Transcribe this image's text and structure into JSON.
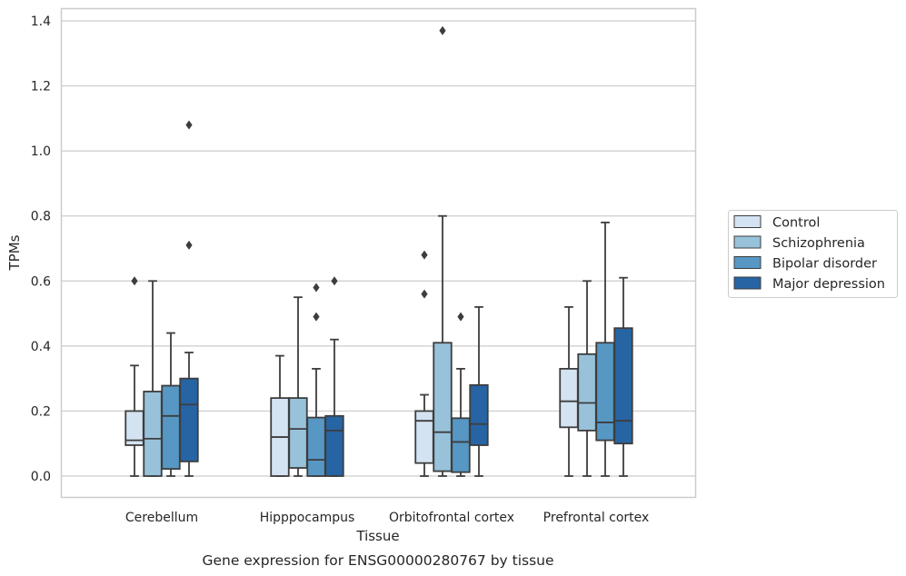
{
  "caption": "Gene expression for ENSG00000280767 by tissue",
  "chart_data": {
    "type": "boxplot",
    "title": "",
    "xlabel": "Tissue",
    "ylabel": "TPMs",
    "ylim": [
      -0.065,
      1.44
    ],
    "yticks": [
      0.0,
      0.2,
      0.4,
      0.6,
      0.8,
      1.0,
      1.2,
      1.4
    ],
    "ytick_labels": [
      "0.0",
      "0.2",
      "0.4",
      "0.6",
      "0.8",
      "1.0",
      "1.2",
      "1.4"
    ],
    "grid": "horizontal",
    "legend_position": "outside right",
    "categories": [
      "Cerebellum",
      "Hipppocampus",
      "Orbitofrontal cortex",
      "Prefrontal cortex"
    ],
    "series": [
      {
        "name": "Control",
        "color": "#d4e3f2",
        "boxes": [
          {
            "whislo": 0.0,
            "q1": 0.095,
            "med": 0.11,
            "q3": 0.2,
            "whishi": 0.34,
            "fliers": [
              0.6
            ]
          },
          {
            "whislo": 0.0,
            "q1": 0.0,
            "med": 0.12,
            "q3": 0.24,
            "whishi": 0.37,
            "fliers": []
          },
          {
            "whislo": 0.0,
            "q1": 0.04,
            "med": 0.17,
            "q3": 0.2,
            "whishi": 0.25,
            "fliers": [
              0.56,
              0.68
            ]
          },
          {
            "whislo": 0.0,
            "q1": 0.15,
            "med": 0.23,
            "q3": 0.33,
            "whishi": 0.52,
            "fliers": []
          }
        ]
      },
      {
        "name": "Schizophrenia",
        "color": "#97c2da",
        "boxes": [
          {
            "whislo": 0.0,
            "q1": 0.0,
            "med": 0.115,
            "q3": 0.26,
            "whishi": 0.6,
            "fliers": []
          },
          {
            "whislo": 0.0,
            "q1": 0.025,
            "med": 0.145,
            "q3": 0.24,
            "whishi": 0.55,
            "fliers": []
          },
          {
            "whislo": 0.0,
            "q1": 0.015,
            "med": 0.135,
            "q3": 0.41,
            "whishi": 0.8,
            "fliers": [
              1.37
            ]
          },
          {
            "whislo": 0.0,
            "q1": 0.14,
            "med": 0.225,
            "q3": 0.375,
            "whishi": 0.6,
            "fliers": []
          }
        ]
      },
      {
        "name": "Bipolar disorder",
        "color": "#5797c4",
        "boxes": [
          {
            "whislo": 0.0,
            "q1": 0.022,
            "med": 0.185,
            "q3": 0.278,
            "whishi": 0.44,
            "fliers": []
          },
          {
            "whislo": 0.0,
            "q1": 0.0,
            "med": 0.05,
            "q3": 0.18,
            "whishi": 0.33,
            "fliers": [
              0.49,
              0.58
            ]
          },
          {
            "whislo": 0.0,
            "q1": 0.012,
            "med": 0.105,
            "q3": 0.178,
            "whishi": 0.33,
            "fliers": [
              0.49
            ]
          },
          {
            "whislo": 0.0,
            "q1": 0.11,
            "med": 0.165,
            "q3": 0.41,
            "whishi": 0.78,
            "fliers": []
          }
        ]
      },
      {
        "name": "Major depression",
        "color": "#2764a4",
        "boxes": [
          {
            "whislo": 0.0,
            "q1": 0.045,
            "med": 0.22,
            "q3": 0.3,
            "whishi": 0.38,
            "fliers": [
              0.71,
              1.08
            ]
          },
          {
            "whislo": 0.0,
            "q1": 0.0,
            "med": 0.14,
            "q3": 0.185,
            "whishi": 0.42,
            "fliers": [
              0.6
            ]
          },
          {
            "whislo": 0.0,
            "q1": 0.095,
            "med": 0.16,
            "q3": 0.28,
            "whishi": 0.52,
            "fliers": []
          },
          {
            "whislo": 0.0,
            "q1": 0.1,
            "med": 0.17,
            "q3": 0.455,
            "whishi": 0.61,
            "fliers": []
          }
        ]
      }
    ]
  }
}
